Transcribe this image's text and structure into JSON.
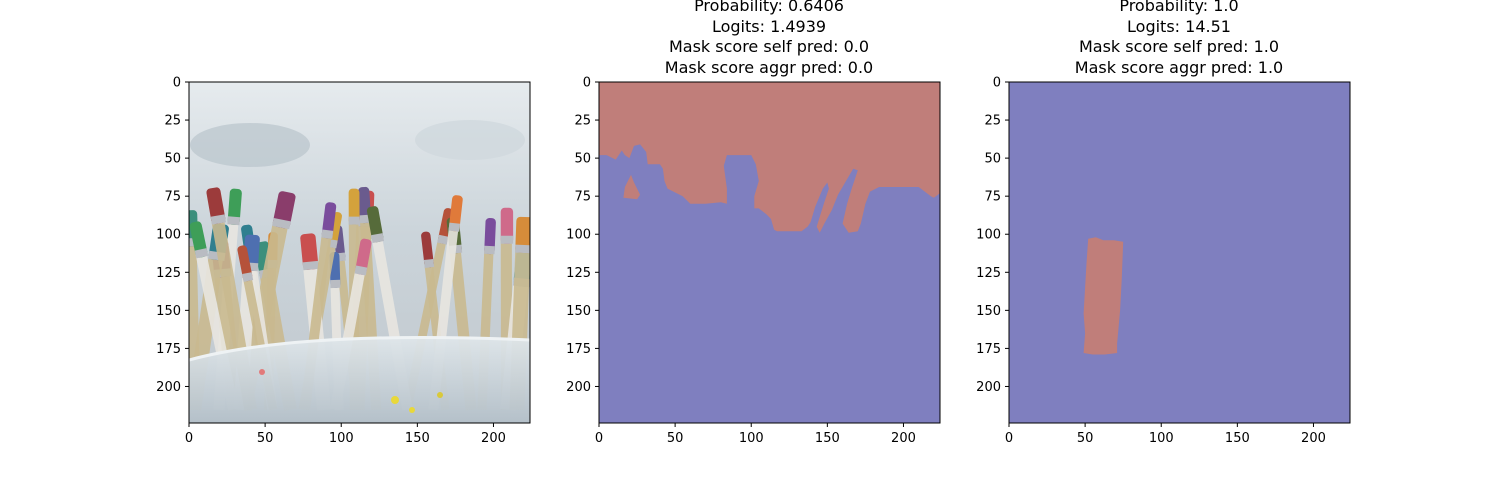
{
  "chart_data": [
    {
      "type": "heatmap",
      "content": "photo-paint-brushes-in-plastic-cup",
      "title_lines": [],
      "xlim": [
        0,
        224
      ],
      "ylim": [
        224,
        0
      ],
      "xticks": [
        0,
        50,
        100,
        150,
        200
      ],
      "yticks": [
        0,
        25,
        50,
        75,
        100,
        125,
        150,
        175,
        200
      ]
    },
    {
      "type": "heatmap",
      "content": "segmentation-mask",
      "title_lines": [
        "Probability: 0.6406",
        "Logits: 1.4939",
        "Mask score self pred: 0.0",
        "Mask score aggr pred: 0.0"
      ],
      "xlim": [
        0,
        224
      ],
      "ylim": [
        224,
        0
      ],
      "xticks": [
        0,
        50,
        100,
        150,
        200
      ],
      "yticks": [
        0,
        25,
        50,
        75,
        100,
        125,
        150,
        175,
        200
      ],
      "mask_color": "#c07e7a",
      "background_color": "#7f7fbf",
      "mask_boundary": [
        [
          0,
          0
        ],
        [
          224,
          0
        ],
        [
          224,
          73
        ],
        [
          220,
          76
        ],
        [
          218,
          75
        ],
        [
          210,
          69
        ],
        [
          200,
          69
        ],
        [
          184,
          69
        ],
        [
          178,
          72
        ],
        [
          175,
          80
        ],
        [
          172,
          93
        ],
        [
          170,
          98
        ],
        [
          164,
          99
        ],
        [
          160,
          93
        ],
        [
          163,
          80
        ],
        [
          166,
          70
        ],
        [
          170,
          58
        ],
        [
          167,
          57
        ],
        [
          164,
          62
        ],
        [
          157,
          74
        ],
        [
          153,
          84
        ],
        [
          148,
          93
        ],
        [
          145,
          99
        ],
        [
          143,
          95
        ],
        [
          148,
          79
        ],
        [
          151,
          70
        ],
        [
          150,
          66
        ],
        [
          147,
          70
        ],
        [
          142,
          82
        ],
        [
          139,
          92
        ],
        [
          137,
          95
        ],
        [
          133,
          98
        ],
        [
          127,
          98
        ],
        [
          122,
          98
        ],
        [
          117,
          98
        ],
        [
          115,
          97
        ],
        [
          113,
          90
        ],
        [
          110,
          87
        ],
        [
          105,
          83
        ],
        [
          102,
          83
        ],
        [
          102,
          75
        ],
        [
          105,
          65
        ],
        [
          103,
          54
        ],
        [
          100,
          48
        ],
        [
          92,
          48
        ],
        [
          84,
          48
        ],
        [
          82,
          55
        ],
        [
          84,
          70
        ],
        [
          84,
          80
        ],
        [
          80,
          79
        ],
        [
          70,
          80
        ],
        [
          60,
          80
        ],
        [
          55,
          75
        ],
        [
          45,
          70
        ],
        [
          43,
          65
        ],
        [
          42,
          57
        ],
        [
          40,
          54
        ],
        [
          32,
          54
        ],
        [
          31,
          46
        ],
        [
          27,
          41
        ],
        [
          23,
          42
        ],
        [
          20,
          50
        ],
        [
          17,
          48
        ],
        [
          15,
          45
        ],
        [
          11,
          51
        ],
        [
          5,
          48
        ],
        [
          0,
          48
        ]
      ],
      "mask_hole": [
        [
          21,
          61
        ],
        [
          23,
          66
        ],
        [
          27,
          74
        ],
        [
          25,
          77
        ],
        [
          16,
          76
        ],
        [
          17,
          69
        ]
      ]
    },
    {
      "type": "heatmap",
      "content": "segmentation-mask",
      "title_lines": [
        "Probability: 1.0",
        "Logits: 14.51",
        "Mask score self pred: 1.0",
        "Mask score aggr pred: 1.0"
      ],
      "xlim": [
        0,
        224
      ],
      "ylim": [
        224,
        0
      ],
      "xticks": [
        0,
        50,
        100,
        150,
        200
      ],
      "yticks": [
        0,
        25,
        50,
        75,
        100,
        125,
        150,
        175,
        200
      ],
      "mask_color": "#c07e7a",
      "background_color": "#7f7fbf",
      "mask_boundary": [
        [
          52,
          103
        ],
        [
          57,
          102
        ],
        [
          62,
          104
        ],
        [
          69,
          104
        ],
        [
          75,
          105
        ],
        [
          74,
          130
        ],
        [
          73,
          150
        ],
        [
          71,
          172
        ],
        [
          71,
          178
        ],
        [
          63,
          179
        ],
        [
          55,
          179
        ],
        [
          49,
          178
        ],
        [
          50,
          165
        ],
        [
          49,
          152
        ],
        [
          50,
          135
        ],
        [
          51,
          118
        ]
      ]
    }
  ]
}
